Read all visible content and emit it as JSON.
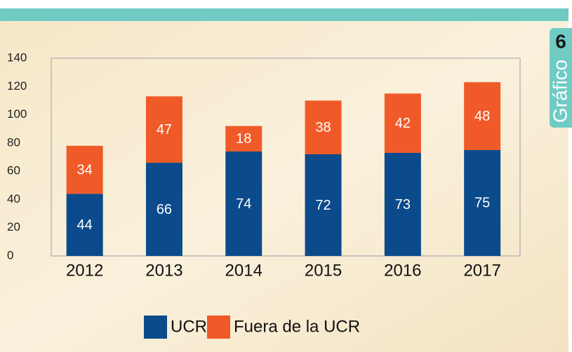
{
  "chart_data": {
    "type": "stacked_bar",
    "categories": [
      "2012",
      "2013",
      "2014",
      "2015",
      "2016",
      "2017"
    ],
    "series": [
      {
        "name": "UCR",
        "color": "#0b4a8b",
        "values": [
          44,
          66,
          74,
          72,
          73,
          75
        ]
      },
      {
        "name": "Fuera de la UCR",
        "color": "#f05a28",
        "values": [
          34,
          47,
          18,
          38,
          42,
          48
        ]
      }
    ],
    "ylim": [
      0,
      140
    ],
    "yticks": [
      0,
      20,
      40,
      60,
      80,
      100,
      120,
      140
    ],
    "grid": false
  },
  "badge": {
    "number": "6",
    "label": "Gráfico"
  }
}
